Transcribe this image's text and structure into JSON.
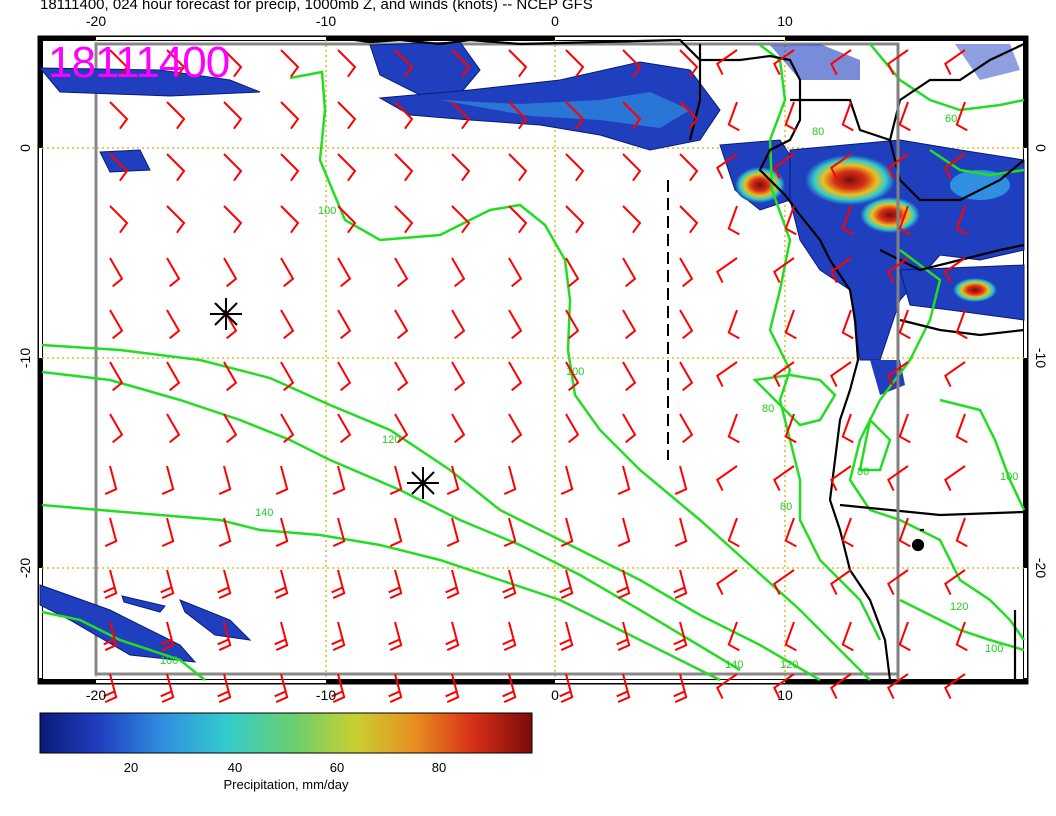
{
  "title": "18111400, 024 hour forecast for precip, 1000mb Z, and winds (knots) -- NCEP GFS",
  "date_stamp": "18111400",
  "map": {
    "lon_ticks_top": [
      "-20",
      "-10",
      "0",
      "10"
    ],
    "lon_ticks_bottom": [
      "-20",
      "-10",
      "0",
      "10"
    ],
    "lat_ticks_left": [
      "0",
      "-10",
      "-20"
    ],
    "lat_ticks_right": [
      "0",
      "-10",
      "-20"
    ],
    "contour_labels": [
      "100",
      "100",
      "120",
      "140",
      "80",
      "80",
      "80",
      "60",
      "80",
      "120",
      "140",
      "120",
      "100",
      "100",
      "100"
    ],
    "colors": {
      "contour": "#22dd22",
      "wind_barb": "#ff0000",
      "coast": "#000000",
      "grid": "#d4b000",
      "frame": "#808080",
      "date_stamp": "#ff00ff"
    },
    "markers": [
      "star-marker",
      "star-marker"
    ]
  },
  "colorbar": {
    "ticks": [
      "20",
      "40",
      "60",
      "80"
    ],
    "label": "Precipitation, mm/day",
    "colors": [
      "#0a1a7a",
      "#1f3fbf",
      "#2f8fe0",
      "#33cccc",
      "#6ccf6c",
      "#c8d030",
      "#e89020",
      "#d83018",
      "#7a0a0a"
    ]
  }
}
